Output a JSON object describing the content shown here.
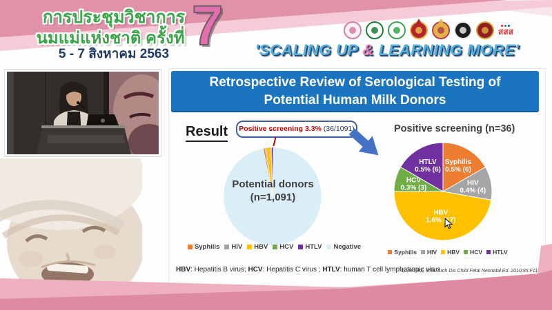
{
  "header": {
    "title_line1": "การประชุมวิชาการ",
    "title_line2": "นมแม่แห่งชาติ ครั้งที่",
    "date_line": "5 - 7 สิงหาคม 2563",
    "edition_number": "7",
    "tagline": {
      "open": "'SCALING UP ",
      "amp": "&",
      "close": " LEARNING MORE'"
    },
    "logos": [
      {
        "name": "breastfeeding-foundation-logo",
        "shape": "circle",
        "bg": "#fdf1f6",
        "ring": "#d37fa0"
      },
      {
        "name": "green-health-department-logo",
        "shape": "circle",
        "bg": "#ffffff",
        "ring": "#1e7e34"
      },
      {
        "name": "green-medical-society-logo",
        "shape": "circle",
        "bg": "#ffffff",
        "ring": "#3fa34d"
      },
      {
        "name": "royal-college-red-gold-crest-logo",
        "shape": "crest",
        "bg": "#b3242b",
        "ring": "#e9b64b"
      },
      {
        "name": "royal-institute-gold-crest-logo",
        "shape": "crest",
        "bg": "#e4b14a",
        "ring": "#b3424b"
      },
      {
        "name": "black-emblem-society-logo",
        "shape": "circle",
        "bg": "#1d1d1b",
        "ring": "#e8e8e8"
      },
      {
        "name": "dark-red-crest-logo",
        "shape": "circle",
        "bg": "#8e1f24",
        "ring": "#dca53c"
      },
      {
        "name": "thaihealth-logo",
        "shape": "text",
        "text": "สสส",
        "ring": "#e03131"
      }
    ]
  },
  "slide": {
    "title": "Retrospective Review of Serological Testing of Potential Human Milk Donors",
    "result_label": "Result",
    "callout_highlight": "Positive screening 3.3%",
    "callout_detail": " (36/1091)",
    "footnote_parts": [
      {
        "t": "HBV",
        "b": true
      },
      {
        "t": ": Hepatitis B virus; "
      },
      {
        "t": "HCV",
        "b": true
      },
      {
        "t": ": Hepatitis C virus ; "
      },
      {
        "t": "HTLV",
        "b": true
      },
      {
        "t": ": human T cell lymphotropic virus"
      }
    ],
    "citation": "Cohen RS, et al. Arch Dis Child Fetal Neonatal Ed. 2010;95:F118-F120."
  },
  "chart_data": [
    {
      "type": "pie",
      "name": "potential-donors-pie",
      "center_label_line1": "Potential donors",
      "center_label_line2": "(n=1,091)",
      "total": 1091,
      "start_angle": -11,
      "annotation": "Positive screening 3.3% (36/1091)",
      "legend_position": "bottom",
      "slices": [
        {
          "label": "Syphilis",
          "value": 6,
          "color": "#ED7D31"
        },
        {
          "label": "HIV",
          "value": 4,
          "color": "#A5A5A5"
        },
        {
          "label": "HBV",
          "value": 17,
          "color": "#FFC000"
        },
        {
          "label": "HCV",
          "value": 3,
          "color": "#70AD47"
        },
        {
          "label": "HTLV",
          "value": 6,
          "color": "#7030A0"
        },
        {
          "label": "Negative",
          "value": 1055,
          "color": "#D9EEF7"
        }
      ]
    },
    {
      "type": "pie",
      "name": "positive-screening-pie",
      "title": "Positive screening (n=36)",
      "total": 36,
      "start_angle": 0,
      "legend_position": "bottom",
      "slices": [
        {
          "label": "Syphilis",
          "value": 6,
          "pct_label": "0.5% (6)",
          "color": "#ED7D31"
        },
        {
          "label": "HIV",
          "value": 4,
          "pct_label": "0.4% (4)",
          "color": "#A5A5A5"
        },
        {
          "label": "HBV",
          "value": 17,
          "pct_label": "1.6% (17)",
          "color": "#FFC000"
        },
        {
          "label": "HCV",
          "value": 3,
          "pct_label": "0.3% (3)",
          "color": "#70AD47"
        },
        {
          "label": "HTLV",
          "value": 6,
          "pct_label": "0.5% (6)",
          "color": "#7030A0"
        }
      ]
    }
  ]
}
